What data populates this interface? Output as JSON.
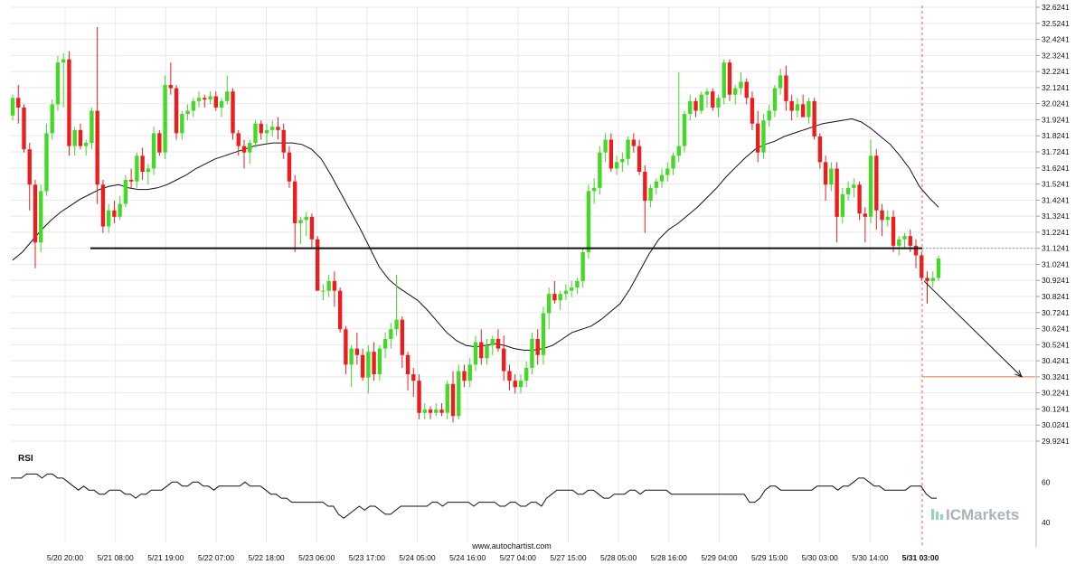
{
  "chart_data": {
    "type": "candlestick",
    "price_axis": {
      "min": 29.9241,
      "max": 32.6241,
      "ticks": [
        "32.6241",
        "32.5241",
        "32.4241",
        "32.3241",
        "32.2241",
        "32.1241",
        "32.0241",
        "31.9241",
        "31.8241",
        "31.7241",
        "31.6241",
        "31.5241",
        "31.4241",
        "31.3241",
        "31.2241",
        "31.1241",
        "31.0241",
        "30.9241",
        "30.8241",
        "30.7241",
        "30.6241",
        "30.5241",
        "30.4241",
        "30.3241",
        "30.2241",
        "30.1241",
        "30.0241",
        "29.9241"
      ]
    },
    "time_axis": {
      "labels": [
        "5/20 20:00",
        "5/21 08:00",
        "5/21 19:00",
        "5/22 07:00",
        "5/22 18:00",
        "5/23 06:00",
        "5/23 17:00",
        "5/24 05:00",
        "5/24 16:00",
        "5/27 04:00",
        "5/27 15:00",
        "5/28 05:00",
        "5/28 16:00",
        "5/29 04:00",
        "5/29 15:00",
        "5/30 03:00",
        "5/30 14:00",
        "5/31 03:00"
      ],
      "highlighted": "5/31 03:00"
    },
    "candles": [
      [
        31.95,
        32.08,
        31.92,
        32.06
      ],
      [
        32.06,
        32.14,
        31.9,
        32.0
      ],
      [
        32.0,
        32.02,
        31.72,
        31.74
      ],
      [
        31.74,
        31.78,
        31.36,
        31.52
      ],
      [
        31.52,
        31.55,
        31.0,
        31.16
      ],
      [
        31.16,
        31.52,
        31.1,
        31.48
      ],
      [
        31.48,
        31.9,
        31.45,
        31.84
      ],
      [
        31.84,
        32.05,
        31.8,
        32.02
      ],
      [
        32.02,
        32.32,
        31.98,
        32.28
      ],
      [
        32.28,
        32.34,
        32.0,
        32.3
      ],
      [
        32.3,
        32.35,
        31.7,
        31.76
      ],
      [
        31.76,
        31.88,
        31.7,
        31.86
      ],
      [
        31.86,
        31.9,
        31.74,
        31.76
      ],
      [
        31.76,
        31.8,
        31.7,
        31.78
      ],
      [
        31.78,
        32.0,
        31.74,
        31.98
      ],
      [
        31.98,
        32.5,
        31.4,
        31.52
      ],
      [
        31.52,
        31.55,
        31.22,
        31.26
      ],
      [
        31.26,
        31.4,
        31.22,
        31.36
      ],
      [
        31.36,
        31.42,
        31.28,
        31.32
      ],
      [
        31.32,
        31.45,
        31.3,
        31.4
      ],
      [
        31.4,
        31.58,
        31.38,
        31.55
      ],
      [
        31.55,
        31.62,
        31.5,
        31.54
      ],
      [
        31.54,
        31.72,
        31.5,
        31.7
      ],
      [
        31.7,
        31.75,
        31.55,
        31.6
      ],
      [
        31.6,
        31.65,
        31.52,
        31.62
      ],
      [
        31.62,
        31.88,
        31.58,
        31.84
      ],
      [
        31.84,
        31.86,
        31.7,
        31.72
      ],
      [
        31.72,
        32.2,
        31.68,
        32.14
      ],
      [
        32.14,
        32.28,
        32.08,
        32.12
      ],
      [
        32.12,
        32.14,
        31.8,
        31.84
      ],
      [
        31.84,
        31.98,
        31.8,
        31.96
      ],
      [
        31.96,
        32.02,
        31.92,
        31.98
      ],
      [
        31.98,
        32.06,
        31.94,
        32.04
      ],
      [
        32.04,
        32.1,
        32.0,
        32.06
      ],
      [
        32.06,
        32.08,
        32.0,
        32.05
      ],
      [
        32.05,
        32.1,
        32.02,
        32.07
      ],
      [
        32.07,
        32.1,
        31.98,
        32.0
      ],
      [
        32.0,
        32.06,
        31.94,
        32.04
      ],
      [
        32.04,
        32.2,
        32.02,
        32.1
      ],
      [
        32.1,
        32.12,
        31.8,
        31.84
      ],
      [
        31.84,
        31.86,
        31.7,
        31.76
      ],
      [
        31.76,
        31.8,
        31.62,
        31.72
      ],
      [
        31.72,
        31.8,
        31.65,
        31.78
      ],
      [
        31.78,
        31.92,
        31.75,
        31.9
      ],
      [
        31.9,
        31.92,
        31.8,
        31.84
      ],
      [
        31.84,
        31.9,
        31.78,
        31.86
      ],
      [
        31.86,
        31.92,
        31.82,
        31.88
      ],
      [
        31.88,
        31.94,
        31.8,
        31.86
      ],
      [
        31.86,
        31.9,
        31.68,
        31.72
      ],
      [
        31.72,
        31.76,
        31.5,
        31.54
      ],
      [
        31.54,
        31.58,
        31.1,
        31.28
      ],
      [
        31.28,
        31.32,
        31.15,
        31.3
      ],
      [
        31.3,
        31.35,
        31.2,
        31.32
      ],
      [
        31.32,
        31.34,
        31.12,
        31.18
      ],
      [
        31.18,
        31.2,
        30.86,
        30.86
      ],
      [
        30.86,
        30.9,
        30.8,
        30.86
      ],
      [
        30.86,
        30.96,
        30.82,
        30.92
      ],
      [
        30.92,
        30.98,
        30.76,
        30.86
      ],
      [
        30.86,
        30.88,
        30.6,
        30.62
      ],
      [
        30.62,
        30.64,
        30.34,
        30.4
      ],
      [
        30.4,
        30.52,
        30.26,
        30.5
      ],
      [
        30.5,
        30.6,
        30.4,
        30.46
      ],
      [
        30.46,
        30.5,
        30.3,
        30.32
      ],
      [
        30.32,
        30.52,
        30.22,
        30.48
      ],
      [
        30.48,
        30.54,
        30.3,
        30.34
      ],
      [
        30.34,
        30.52,
        30.3,
        30.5
      ],
      [
        30.5,
        30.6,
        30.44,
        30.56
      ],
      [
        30.56,
        30.66,
        30.5,
        30.62
      ],
      [
        30.62,
        30.96,
        30.58,
        30.68
      ],
      [
        30.68,
        30.7,
        30.38,
        30.46
      ],
      [
        30.46,
        30.48,
        30.24,
        30.34
      ],
      [
        30.34,
        30.38,
        30.2,
        30.3
      ],
      [
        30.3,
        30.34,
        30.06,
        30.1
      ],
      [
        30.1,
        30.16,
        30.06,
        30.12
      ],
      [
        30.12,
        30.14,
        30.06,
        30.1
      ],
      [
        30.1,
        30.16,
        30.08,
        30.12
      ],
      [
        30.12,
        30.16,
        30.08,
        30.1
      ],
      [
        30.1,
        30.3,
        30.06,
        30.28
      ],
      [
        30.28,
        30.36,
        30.04,
        30.08
      ],
      [
        30.08,
        30.4,
        30.06,
        30.36
      ],
      [
        30.36,
        30.4,
        30.26,
        30.3
      ],
      [
        30.3,
        30.44,
        30.26,
        30.4
      ],
      [
        30.4,
        30.58,
        30.36,
        30.54
      ],
      [
        30.54,
        30.62,
        30.4,
        30.44
      ],
      [
        30.44,
        30.56,
        30.4,
        30.52
      ],
      [
        30.52,
        30.58,
        30.46,
        30.56
      ],
      [
        30.56,
        30.62,
        30.48,
        30.5
      ],
      [
        30.5,
        30.58,
        30.3,
        30.36
      ],
      [
        30.36,
        30.4,
        30.24,
        30.3
      ],
      [
        30.3,
        30.34,
        30.22,
        30.26
      ],
      [
        30.26,
        30.34,
        30.22,
        30.3
      ],
      [
        30.3,
        30.42,
        30.26,
        30.38
      ],
      [
        30.38,
        30.6,
        30.34,
        30.56
      ],
      [
        30.56,
        30.62,
        30.4,
        30.46
      ],
      [
        30.46,
        30.76,
        30.4,
        30.72
      ],
      [
        30.72,
        30.88,
        30.62,
        30.84
      ],
      [
        30.84,
        30.92,
        30.78,
        30.8
      ],
      [
        30.8,
        30.86,
        30.74,
        30.84
      ],
      [
        30.84,
        30.9,
        30.8,
        30.86
      ],
      [
        30.86,
        30.92,
        30.82,
        30.88
      ],
      [
        30.88,
        30.94,
        30.84,
        30.92
      ],
      [
        30.92,
        31.12,
        30.88,
        31.1
      ],
      [
        31.1,
        31.52,
        31.06,
        31.48
      ],
      [
        31.48,
        31.56,
        31.4,
        31.5
      ],
      [
        31.5,
        31.76,
        31.46,
        31.72
      ],
      [
        31.72,
        31.84,
        31.66,
        31.8
      ],
      [
        31.8,
        31.84,
        31.6,
        31.62
      ],
      [
        31.62,
        31.7,
        31.58,
        31.66
      ],
      [
        31.66,
        31.72,
        31.6,
        31.68
      ],
      [
        31.68,
        31.82,
        31.64,
        31.8
      ],
      [
        31.8,
        31.84,
        31.72,
        31.76
      ],
      [
        31.76,
        31.8,
        31.58,
        31.6
      ],
      [
        31.6,
        31.64,
        31.22,
        31.42
      ],
      [
        31.42,
        31.52,
        31.38,
        31.5
      ],
      [
        31.5,
        31.56,
        31.46,
        31.54
      ],
      [
        31.54,
        31.62,
        31.5,
        31.58
      ],
      [
        31.58,
        31.66,
        31.54,
        31.62
      ],
      [
        31.62,
        31.72,
        31.58,
        31.7
      ],
      [
        31.7,
        32.22,
        31.66,
        31.76
      ],
      [
        31.76,
        31.98,
        31.72,
        31.96
      ],
      [
        31.96,
        32.08,
        31.92,
        32.04
      ],
      [
        32.04,
        32.06,
        31.94,
        31.98
      ],
      [
        31.98,
        32.1,
        31.96,
        32.08
      ],
      [
        32.08,
        32.12,
        32.0,
        32.1
      ],
      [
        32.1,
        32.12,
        31.98,
        32.0
      ],
      [
        32.0,
        32.08,
        31.94,
        32.06
      ],
      [
        32.06,
        32.3,
        32.02,
        32.28
      ],
      [
        32.28,
        32.3,
        32.04,
        32.08
      ],
      [
        32.08,
        32.14,
        32.02,
        32.12
      ],
      [
        32.12,
        32.22,
        32.08,
        32.16
      ],
      [
        32.16,
        32.18,
        32.02,
        32.06
      ],
      [
        32.06,
        32.1,
        31.86,
        31.9
      ],
      [
        31.9,
        31.98,
        31.66,
        31.72
      ],
      [
        31.72,
        31.96,
        31.68,
        31.92
      ],
      [
        31.92,
        32.02,
        31.88,
        31.98
      ],
      [
        31.98,
        32.14,
        31.94,
        32.12
      ],
      [
        32.12,
        32.24,
        32.08,
        32.2
      ],
      [
        32.2,
        32.26,
        31.98,
        32.04
      ],
      [
        32.04,
        32.08,
        31.92,
        31.98
      ],
      [
        31.98,
        32.06,
        31.94,
        32.02
      ],
      [
        32.02,
        32.08,
        31.96,
        31.94
      ],
      [
        31.94,
        32.06,
        31.9,
        32.04
      ],
      [
        32.04,
        32.06,
        31.8,
        31.82
      ],
      [
        31.82,
        31.84,
        31.62,
        31.66
      ],
      [
        31.66,
        31.7,
        31.42,
        31.52
      ],
      [
        31.52,
        31.66,
        31.48,
        31.62
      ],
      [
        31.62,
        31.66,
        31.16,
        31.32
      ],
      [
        31.32,
        31.5,
        31.28,
        31.46
      ],
      [
        31.46,
        31.54,
        31.42,
        31.5
      ],
      [
        31.5,
        31.56,
        31.44,
        31.52
      ],
      [
        31.52,
        31.54,
        31.3,
        31.34
      ],
      [
        31.34,
        31.38,
        31.16,
        31.32
      ],
      [
        31.32,
        31.8,
        31.28,
        31.7
      ],
      [
        31.7,
        31.74,
        31.24,
        31.36
      ],
      [
        31.36,
        31.4,
        31.2,
        31.3
      ],
      [
        31.3,
        31.36,
        31.26,
        31.32
      ],
      [
        31.32,
        31.36,
        31.1,
        31.14
      ],
      [
        31.14,
        31.2,
        31.08,
        31.18
      ],
      [
        31.18,
        31.22,
        31.12,
        31.2
      ],
      [
        31.2,
        31.24,
        31.1,
        31.14
      ],
      [
        31.14,
        31.18,
        31.0,
        31.08
      ],
      [
        31.08,
        31.1,
        30.92,
        30.94
      ],
      [
        30.94,
        30.98,
        30.78,
        30.92
      ],
      [
        30.92,
        30.98,
        30.88,
        30.94
      ],
      [
        30.94,
        31.08,
        30.92,
        31.06
      ]
    ],
    "moving_average": [
      31.05,
      31.1,
      31.17,
      31.24,
      31.3,
      31.35,
      31.39,
      31.43,
      31.46,
      31.49,
      31.51,
      31.52,
      31.5,
      31.49,
      31.49,
      31.5,
      31.52,
      31.55,
      31.58,
      31.62,
      31.65,
      31.68,
      31.7,
      31.72,
      31.74,
      31.76,
      31.77,
      31.78,
      31.78,
      31.78,
      31.77,
      31.74,
      31.68,
      31.58,
      31.47,
      31.36,
      31.25,
      31.13,
      31.01,
      30.93,
      30.88,
      30.84,
      30.8,
      30.74,
      30.67,
      30.6,
      30.55,
      30.52,
      30.51,
      30.52,
      30.53,
      30.52,
      30.5,
      30.49,
      30.49,
      30.5,
      30.52,
      30.56,
      30.6,
      30.62,
      30.64,
      30.68,
      30.73,
      30.78,
      30.87,
      30.98,
      31.09,
      31.18,
      31.24,
      31.28,
      31.33,
      31.38,
      31.44,
      31.5,
      31.57,
      31.63,
      31.69,
      31.74,
      31.77,
      31.79,
      31.82,
      31.84,
      31.86,
      31.88,
      31.9,
      31.91,
      31.92,
      31.93,
      31.91,
      31.87,
      31.82,
      31.77,
      31.7,
      31.62,
      31.51,
      31.44,
      31.38
    ],
    "support_level": 31.1241,
    "target_level": 30.3241,
    "current_price": 31.1241,
    "rsi": {
      "label": "RSI",
      "ticks": [
        "60",
        "40"
      ],
      "values": [
        62,
        62,
        62,
        64,
        64,
        64,
        62,
        64,
        64,
        62,
        62,
        60,
        58,
        56,
        58,
        56,
        56,
        54,
        54,
        56,
        56,
        56,
        54,
        54,
        52,
        54,
        54,
        56,
        56,
        56,
        58,
        60,
        60,
        58,
        58,
        60,
        60,
        58,
        58,
        56,
        58,
        58,
        58,
        58,
        58,
        60,
        58,
        58,
        58,
        56,
        54,
        54,
        52,
        52,
        50,
        50,
        50,
        50,
        50,
        50,
        50,
        48,
        48,
        44,
        42,
        44,
        46,
        48,
        46,
        48,
        48,
        46,
        44,
        44,
        46,
        48,
        48,
        48,
        48,
        48,
        48,
        50,
        50,
        48,
        50,
        50,
        50,
        50,
        50,
        48,
        50,
        50,
        50,
        50,
        48,
        48,
        50,
        50,
        48,
        48,
        50,
        50,
        48,
        52,
        54,
        56,
        56,
        56,
        56,
        54,
        54,
        56,
        56,
        54,
        52,
        52,
        54,
        54,
        54,
        56,
        56,
        54,
        56,
        56,
        56,
        56,
        56,
        54,
        54,
        54,
        54,
        54,
        54,
        54,
        54,
        54,
        54,
        54,
        54,
        54,
        54,
        54,
        50,
        50,
        52,
        56,
        58,
        58,
        56,
        56,
        56,
        56,
        56,
        56,
        56,
        58,
        58,
        58,
        58,
        56,
        58,
        58,
        60,
        62,
        62,
        60,
        58,
        58,
        56,
        56,
        56,
        56,
        56,
        58,
        58,
        58,
        54,
        52,
        52
      ]
    },
    "watermark": "www.autochartist.com",
    "brand": "ICMarkets"
  },
  "colors": {
    "bull": "#44d926",
    "bear": "#ee1c1c",
    "grid": "#e8e8e8",
    "ma": "#111111",
    "support": "#111111",
    "target": "#f07a3b",
    "arrow": "#111111",
    "axis_text": "#111111",
    "rsi_line": "#111111",
    "brand_text": "#aab3b8",
    "brand_accent": "#63c3a6",
    "price_guide": "#999999",
    "vline": "#c44444"
  }
}
